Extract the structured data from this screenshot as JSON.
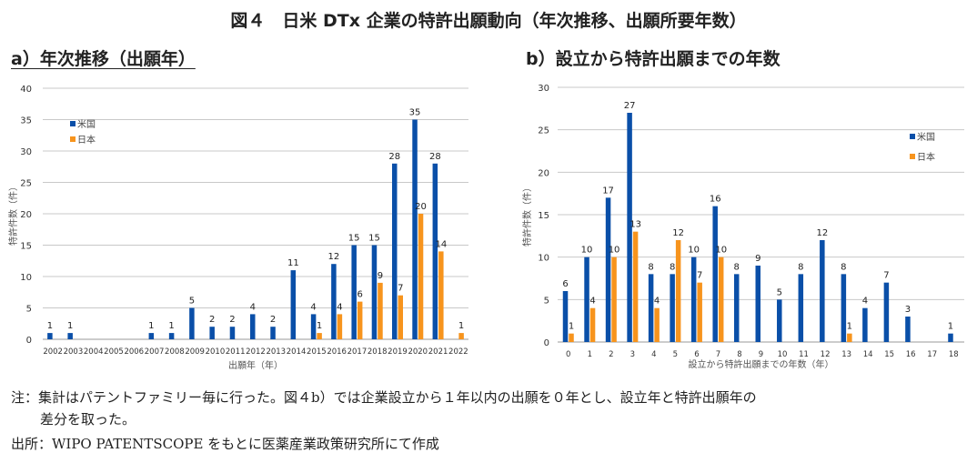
{
  "title": "図４　日米 DTx 企業の特許出願動向（年次推移、出願所要年数）",
  "notes": {
    "note1": "注：集計はパテントファミリー毎に行った。図４b）では企業設立から１年以内の出願を０年とし、設立年と特許出願年の",
    "note2": "差分を取った。",
    "source": "出所：WIPO PATENTSCOPE をもとに医薬産業政策研究所にて作成"
  },
  "colors": {
    "us": "#0a4fa8",
    "japan": "#f7941d",
    "grid": "#c8c8c8"
  },
  "chart_data": [
    {
      "type": "bar",
      "subtitle": "a）年次推移（出願年）",
      "xlabel": "出願年（年）",
      "ylabel": "特許件数（件）",
      "ylim": [
        0,
        40
      ],
      "yticks": [
        0,
        5,
        10,
        15,
        20,
        25,
        30,
        35,
        40
      ],
      "grid": true,
      "legend": "top-left",
      "categories": [
        "2002",
        "2003",
        "2004",
        "2005",
        "2006",
        "2007",
        "2008",
        "2009",
        "2010",
        "2011",
        "2012",
        "2013",
        "2014",
        "2015",
        "2016",
        "2017",
        "2018",
        "2019",
        "2020",
        "2021",
        "2022"
      ],
      "series": [
        {
          "name": "米国",
          "values": [
            1,
            1,
            0,
            0,
            0,
            1,
            1,
            5,
            2,
            2,
            4,
            2,
            11,
            4,
            12,
            15,
            15,
            28,
            35,
            28,
            0
          ]
        },
        {
          "name": "日本",
          "values": [
            0,
            0,
            0,
            0,
            0,
            0,
            0,
            0,
            0,
            0,
            0,
            0,
            0,
            1,
            4,
            6,
            9,
            7,
            20,
            14,
            1
          ]
        }
      ]
    },
    {
      "type": "bar",
      "subtitle": "b）設立から特許出願までの年数",
      "xlabel": "設立から特許出願までの年数（年）",
      "ylabel": "特許件数（件）",
      "ylim": [
        0,
        30
      ],
      "yticks": [
        0,
        5,
        10,
        15,
        20,
        25,
        30
      ],
      "grid": true,
      "legend": "top-right",
      "categories": [
        "0",
        "1",
        "2",
        "3",
        "4",
        "5",
        "6",
        "7",
        "8",
        "9",
        "10",
        "11",
        "12",
        "13",
        "14",
        "15",
        "16",
        "17",
        "18"
      ],
      "series": [
        {
          "name": "米国",
          "values": [
            6,
            10,
            17,
            27,
            8,
            8,
            10,
            16,
            8,
            9,
            5,
            8,
            12,
            8,
            4,
            7,
            3,
            0,
            1
          ]
        },
        {
          "name": "日本",
          "values": [
            1,
            4,
            10,
            13,
            4,
            12,
            7,
            10,
            0,
            0,
            0,
            0,
            0,
            1,
            0,
            0,
            0,
            0,
            0
          ]
        }
      ]
    }
  ]
}
